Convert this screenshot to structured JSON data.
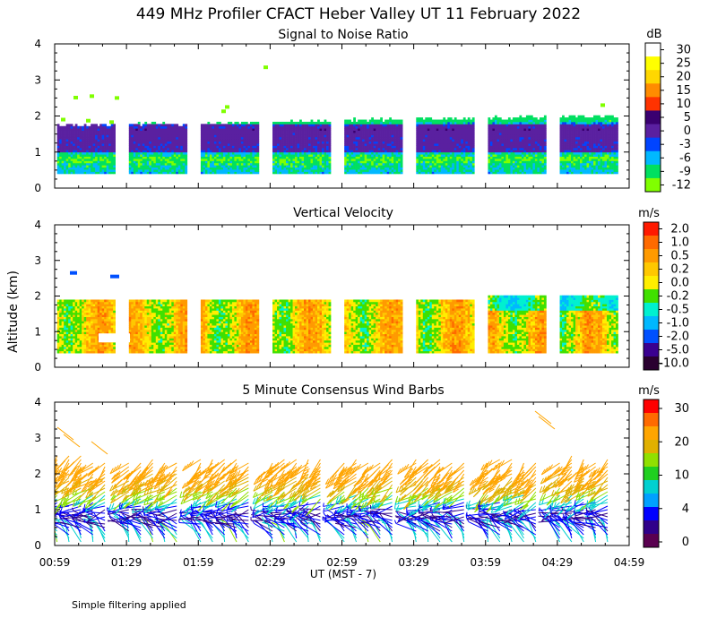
{
  "figure": {
    "title": "449 MHz Profiler CFACT Heber Valley UT 11 February 2022",
    "ylabel": "Altitude (km)",
    "xlabel": "UT  (MST - 7)",
    "footnote": "Simple filtering applied"
  },
  "chart_data": [
    {
      "type": "heatmap",
      "title": "Signal to Noise Ratio",
      "ylabel": "Altitude (km)",
      "ylim": [
        0,
        4
      ],
      "yticks": [
        "0",
        "1",
        "2",
        "3",
        "4"
      ],
      "xticks": [
        "00:59",
        "01:29",
        "01:59",
        "02:29",
        "02:59",
        "03:29",
        "03:59",
        "04:29",
        "04:59"
      ],
      "colorbar": {
        "unit": "dB",
        "levels": [
          "30",
          "25",
          "20",
          "15",
          "10",
          "5",
          "0",
          "-3",
          "-6",
          "-9",
          "-12"
        ],
        "colors": [
          "#ffffff",
          "#ffff00",
          "#ffd700",
          "#ff8c00",
          "#ff3300",
          "#3a0070",
          "#5a20a0",
          "#0044ff",
          "#00b8ff",
          "#00e060",
          "#80ff00"
        ]
      },
      "blocks_utc": [
        [
          "01:00",
          "01:24"
        ],
        [
          "01:30",
          "01:54"
        ],
        [
          "02:00",
          "02:24"
        ],
        [
          "02:30",
          "02:54"
        ],
        [
          "03:00",
          "03:24"
        ],
        [
          "03:30",
          "03:54"
        ],
        [
          "04:00",
          "04:24"
        ],
        [
          "04:30",
          "04:54"
        ]
      ],
      "data_range_km": [
        0.4,
        2.0
      ],
      "typical_dB_by_height": [
        {
          "alt_km": 0.5,
          "dB": -6
        },
        {
          "alt_km": 0.8,
          "dB": -9
        },
        {
          "alt_km": 1.2,
          "dB": 0
        },
        {
          "alt_km": 1.6,
          "dB": 3
        },
        {
          "alt_km": 1.9,
          "dB": -9
        }
      ]
    },
    {
      "type": "heatmap",
      "title": "Vertical Velocity",
      "ylabel": "Altitude (km)",
      "ylim": [
        0,
        4
      ],
      "yticks": [
        "0",
        "1",
        "2",
        "3",
        "4"
      ],
      "xticks": [
        "00:59",
        "01:29",
        "01:59",
        "02:29",
        "02:59",
        "03:29",
        "03:59",
        "04:29",
        "04:59"
      ],
      "colorbar": {
        "unit": "m/s",
        "levels": [
          "2.0",
          "1.0",
          "0.5",
          "0.2",
          "0.0",
          "-0.2",
          "-0.5",
          "-1.0",
          "-2.0",
          "-5.0",
          "-10.0"
        ],
        "colors": [
          "#ff1a00",
          "#ff6a00",
          "#ff9a00",
          "#ffc800",
          "#ffee00",
          "#40e000",
          "#00f0d0",
          "#00b8ff",
          "#0050ff",
          "#3a0090",
          "#2a0030"
        ]
      },
      "data_range_km": [
        0.4,
        2.0
      ],
      "typical_range_ms": [
        -1.0,
        0.5
      ]
    },
    {
      "type": "wind_barbs",
      "title": "5 Minute Consensus Wind Barbs",
      "ylabel": "Altitude (km)",
      "ylim": [
        0,
        4
      ],
      "yticks": [
        "0",
        "1",
        "2",
        "3",
        "4"
      ],
      "xticks": [
        "00:59",
        "01:29",
        "01:59",
        "02:29",
        "02:59",
        "03:29",
        "03:59",
        "04:29",
        "04:59"
      ],
      "colorbar": {
        "unit": "m/s",
        "levels": [
          "30",
          "20",
          "10",
          "4",
          "0"
        ],
        "colors": [
          "#ff0000",
          "#ff6a00",
          "#ffa500",
          "#e0b000",
          "#90e000",
          "#20d020",
          "#00d0d0",
          "#00a0ff",
          "#0000ff",
          "#30008a",
          "#5a0050"
        ]
      },
      "profiles": [
        {
          "alt_km": 0.1,
          "speed_ms": 8,
          "dir_deg": 200
        },
        {
          "alt_km": 0.5,
          "speed_ms": 3,
          "dir_deg": 240
        },
        {
          "alt_km": 0.9,
          "speed_ms": 2,
          "dir_deg": 280
        },
        {
          "alt_km": 1.3,
          "speed_ms": 8,
          "dir_deg": 300
        },
        {
          "alt_km": 1.7,
          "speed_ms": 14,
          "dir_deg": 310
        },
        {
          "alt_km": 2.1,
          "speed_ms": 18,
          "dir_deg": 315
        },
        {
          "alt_km": 2.5,
          "speed_ms": 20,
          "dir_deg": 320
        }
      ]
    }
  ]
}
